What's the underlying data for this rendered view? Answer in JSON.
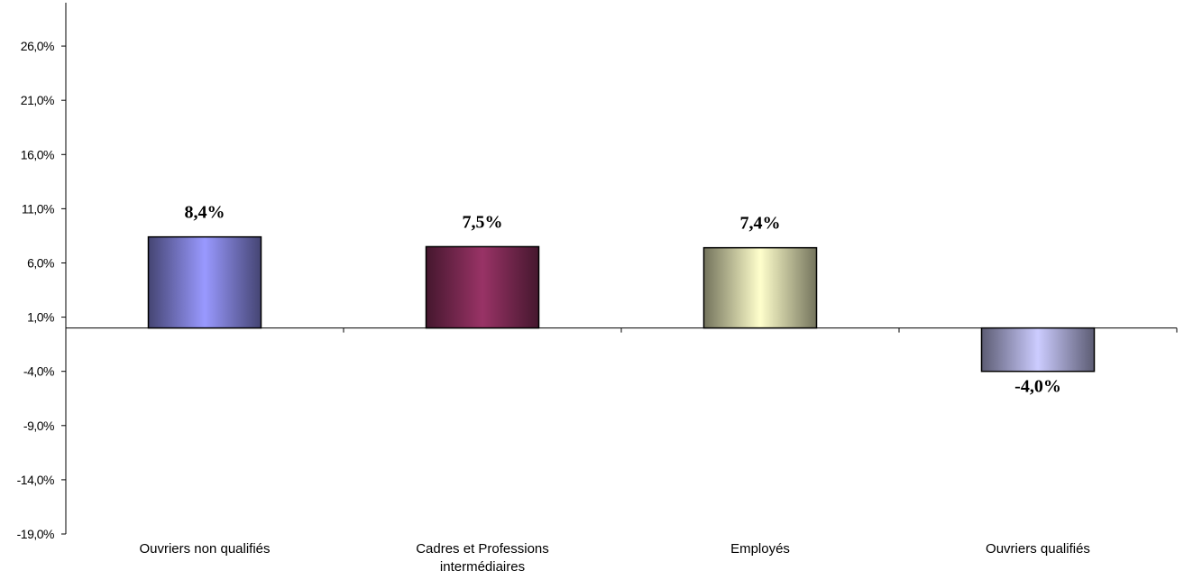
{
  "chart_data": {
    "type": "bar",
    "categories": [
      [
        "Ouvriers non qualifiés"
      ],
      [
        "Cadres et Professions",
        "intermédiaires"
      ],
      [
        "Employés"
      ],
      [
        "Ouvriers qualifiés"
      ]
    ],
    "values": [
      8.4,
      7.5,
      7.4,
      -4.0
    ],
    "data_labels": [
      "8,4%",
      "7,5%",
      "7,4%",
      "-4,0%"
    ],
    "y_ticks": [
      26.0,
      21.0,
      16.0,
      11.0,
      6.0,
      1.0,
      -4.0,
      -9.0,
      -14.0,
      -19.0
    ],
    "y_tick_labels": [
      "26,0%",
      "21,0%",
      "16,0%",
      "11,0%",
      "6,0%",
      "1,0%",
      "-4,0%",
      "-9,0%",
      "-14,0%",
      "-19,0%"
    ],
    "ylim": [
      -19.0,
      30.0
    ],
    "grid": false,
    "legend": "none",
    "colors": [
      "#9999ff",
      "#993366",
      "#ffffcc",
      "#ccccff"
    ],
    "title": "",
    "xlabel": "",
    "ylabel": ""
  }
}
